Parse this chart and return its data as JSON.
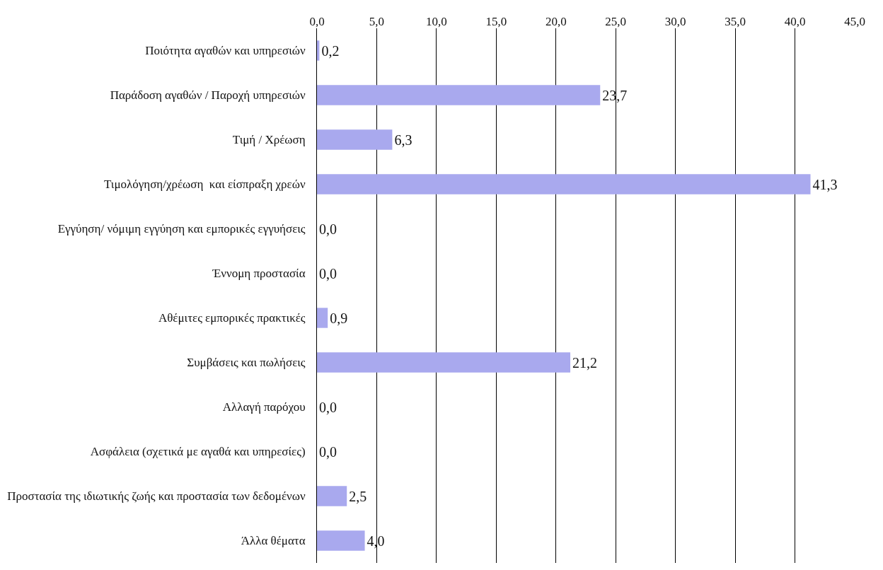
{
  "chart_data": {
    "type": "bar",
    "orientation": "horizontal",
    "categories": [
      "Ποιότητα αγαθών και υπηρεσιών",
      "Παράδοση αγαθών / Παροχή υπηρεσιών",
      "Τιμή / Χρέωση",
      "Τιμολόγηση/χρέωση  και είσπραξη χρεών",
      "Εγγύηση/ νόμιμη εγγύηση και εμπορικές εγγυήσεις",
      "Έννομη προστασία",
      "Αθέμιτες εμπορικές πρακτικές",
      "Συμβάσεις και πωλήσεις",
      "Αλλαγή παρόχου",
      "Ασφάλεια (σχετικά με αγαθά και υπηρεσίες)",
      "Προστασία της ιδιωτικής ζωής και προστασία των δεδομένων",
      "Άλλα θέματα"
    ],
    "values": [
      0.2,
      23.7,
      6.3,
      41.3,
      0.0,
      0.0,
      0.9,
      21.2,
      0.0,
      0.0,
      2.5,
      4.0
    ],
    "value_labels": [
      "0,2",
      "23,7",
      "6,3",
      "41,3",
      "0,0",
      "0,0",
      "0,9",
      "21,2",
      "0,0",
      "0,0",
      "2,5",
      "4,0"
    ],
    "color": "#a9a9ee",
    "xlim": [
      0,
      45
    ],
    "xticks": [
      {
        "value": 0,
        "label": "0,0"
      },
      {
        "value": 5,
        "label": "5,0"
      },
      {
        "value": 10,
        "label": "10,0"
      },
      {
        "value": 15,
        "label": "15,0"
      },
      {
        "value": 20,
        "label": "20,0"
      },
      {
        "value": 25,
        "label": "25,0"
      },
      {
        "value": 30,
        "label": "30,0"
      },
      {
        "value": 35,
        "label": "35,0"
      },
      {
        "value": 40,
        "label": "40,0"
      },
      {
        "value": 45,
        "label": "45,0"
      }
    ],
    "grid": "x",
    "legend": false
  }
}
